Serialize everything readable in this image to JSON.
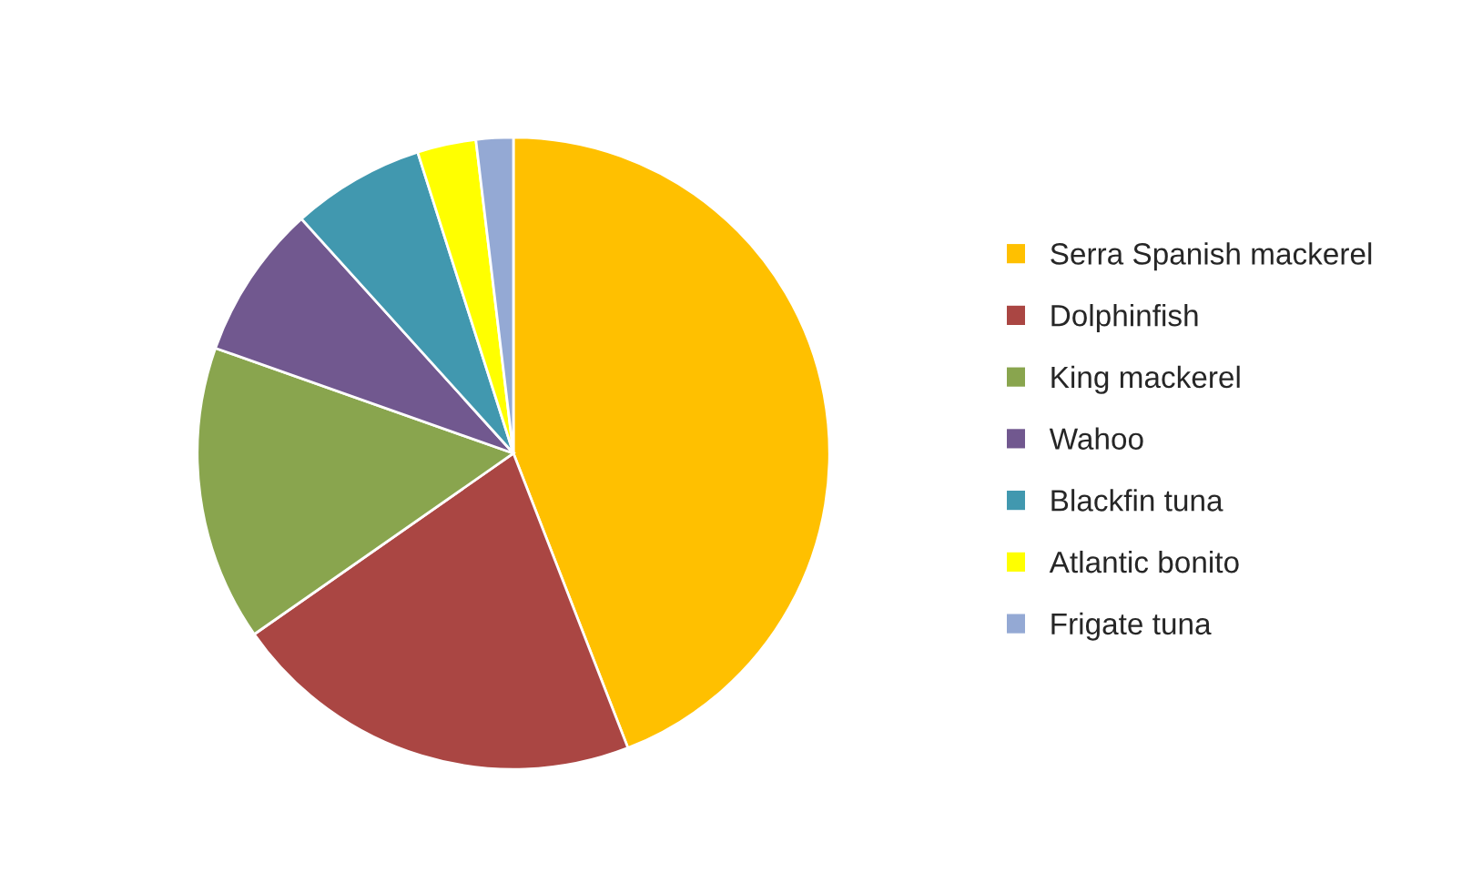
{
  "chart_data": {
    "type": "pie",
    "categories": [
      "Serra Spanish mackerel",
      "Dolphinfish",
      "King mackerel",
      "Wahoo",
      "Blackfin tuna",
      "Atlantic bonito",
      "Frigate tuna"
    ],
    "values": [
      44.1,
      21.2,
      15.1,
      7.9,
      6.8,
      3.0,
      1.9
    ],
    "colors": [
      "#ffc000",
      "#aa4643",
      "#89a54e",
      "#71588f",
      "#4198af",
      "#ffff00",
      "#94a9d4"
    ],
    "legend": "right"
  }
}
